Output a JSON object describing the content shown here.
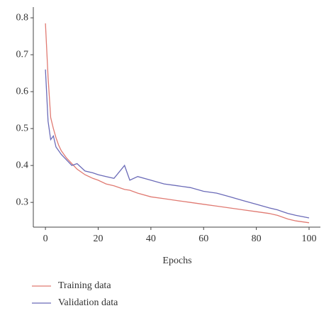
{
  "chart_data": {
    "type": "line",
    "x_label": "Epochs",
    "x": [
      0,
      1,
      2,
      3,
      4,
      5,
      6,
      8,
      10,
      12,
      15,
      18,
      20,
      23,
      26,
      30,
      32,
      35,
      40,
      45,
      50,
      55,
      60,
      65,
      70,
      75,
      80,
      85,
      88,
      90,
      92,
      95,
      100
    ],
    "series": [
      {
        "name": "Training data",
        "color": "#e07a72",
        "values": [
          0.785,
          0.64,
          0.53,
          0.5,
          0.475,
          0.455,
          0.44,
          0.42,
          0.405,
          0.39,
          0.375,
          0.365,
          0.36,
          0.35,
          0.345,
          0.335,
          0.333,
          0.325,
          0.315,
          0.31,
          0.305,
          0.3,
          0.295,
          0.29,
          0.285,
          0.28,
          0.275,
          0.27,
          0.265,
          0.26,
          0.255,
          0.25,
          0.245
        ]
      },
      {
        "name": "Validation data",
        "color": "#6b6bb8",
        "values": [
          0.66,
          0.52,
          0.47,
          0.48,
          0.45,
          0.44,
          0.43,
          0.415,
          0.4,
          0.405,
          0.385,
          0.38,
          0.375,
          0.37,
          0.365,
          0.4,
          0.36,
          0.37,
          0.36,
          0.35,
          0.345,
          0.34,
          0.33,
          0.325,
          0.315,
          0.305,
          0.295,
          0.285,
          0.28,
          0.275,
          0.27,
          0.265,
          0.258
        ]
      }
    ],
    "xlim": [
      -4.6,
      104.3
    ],
    "xticks": [
      0,
      20,
      40,
      60,
      80,
      100
    ],
    "ylim": [
      0.233,
      0.829
    ],
    "yticks": [
      0.3,
      0.4,
      0.5,
      0.6,
      0.7,
      0.8
    ]
  }
}
